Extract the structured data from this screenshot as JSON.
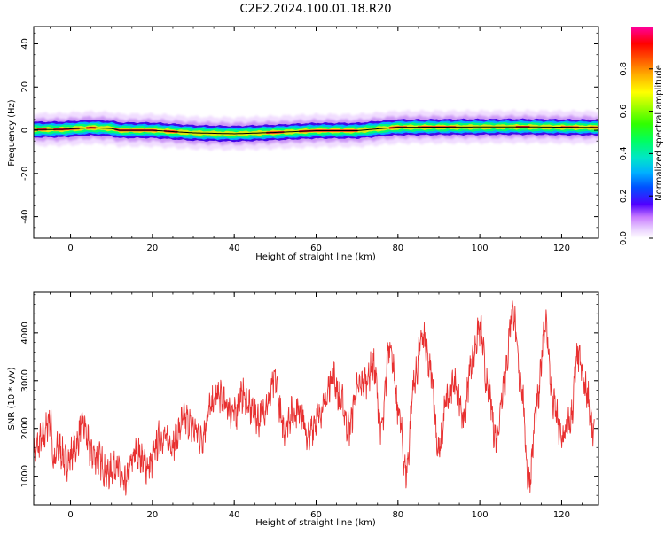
{
  "chart_data": [
    {
      "type": "heatmap",
      "title": "C2E2.2024.100.01.18.R20",
      "xlabel": "Height of straight line (km)",
      "ylabel": "Frequency (Hz)",
      "xlim": [
        -9,
        129
      ],
      "ylim": [
        -50,
        48
      ],
      "x_ticks": [
        0,
        20,
        40,
        60,
        80,
        100,
        120
      ],
      "y_ticks": [
        40,
        20,
        0,
        -20,
        -40
      ],
      "x_tick_labels": [
        "0",
        "20",
        "40",
        "60",
        "80",
        "100",
        "120"
      ],
      "y_tick_labels": [
        "40",
        "20",
        "0",
        "-20",
        "-40"
      ],
      "reference_line": [
        {
          "x": -9,
          "y": 0.3
        },
        {
          "x": -2,
          "y": 0.4
        },
        {
          "x": 5,
          "y": 1.2
        },
        {
          "x": 10,
          "y": 0.8
        },
        {
          "x": 12,
          "y": 0.0
        },
        {
          "x": 20,
          "y": 0.0
        },
        {
          "x": 30,
          "y": -1.2
        },
        {
          "x": 40,
          "y": -1.6
        },
        {
          "x": 50,
          "y": -1.0
        },
        {
          "x": 60,
          "y": -0.2
        },
        {
          "x": 70,
          "y": -0.2
        },
        {
          "x": 76,
          "y": 0.8
        },
        {
          "x": 80,
          "y": 1.4
        },
        {
          "x": 95,
          "y": 1.5
        },
        {
          "x": 110,
          "y": 1.6
        },
        {
          "x": 129,
          "y": 1.3
        }
      ],
      "colorbar": {
        "label": "Normalized spectral amplitude",
        "range": [
          0.0,
          1.0
        ],
        "ticks": [
          0.0,
          0.2,
          0.4,
          0.6,
          0.8
        ],
        "tick_labels": [
          "0.0",
          "0.2",
          "0.4",
          "0.6",
          "0.8"
        ],
        "colormap": "gist_ncar_r"
      }
    },
    {
      "type": "line",
      "xlabel": "Height of straight line (km)",
      "ylabel": "SNR (10 * v/v)",
      "xlim": [
        -9,
        129
      ],
      "ylim": [
        400,
        4850
      ],
      "x_ticks": [
        0,
        20,
        40,
        60,
        80,
        100,
        120
      ],
      "y_ticks": [
        1000,
        2000,
        3000,
        4000
      ],
      "x_tick_labels": [
        "0",
        "20",
        "40",
        "60",
        "80",
        "100",
        "120"
      ],
      "y_tick_labels": [
        "1000",
        "2000",
        "3000",
        "4000"
      ],
      "series": [
        {
          "name": "SNR",
          "color": "#e83030",
          "x": [
            -9,
            -7,
            -5,
            -4,
            -3,
            -1,
            1,
            3,
            5,
            7,
            9,
            11,
            13,
            16,
            19,
            22,
            25,
            28,
            30,
            32,
            34,
            36,
            38,
            40,
            42,
            44,
            46,
            48,
            50,
            52,
            54,
            56,
            58,
            60,
            62,
            64,
            66,
            68,
            70,
            72,
            74,
            76,
            78,
            80,
            82,
            84,
            86,
            88,
            90,
            92,
            94,
            96,
            98,
            100,
            102,
            104,
            106,
            108,
            110,
            112,
            114,
            116,
            118,
            120,
            122,
            124,
            126,
            128
          ],
          "values": [
            1500,
            1750,
            2200,
            1250,
            1600,
            1300,
            1550,
            2100,
            1500,
            1350,
            1050,
            1250,
            800,
            1500,
            1200,
            1800,
            1700,
            2200,
            2000,
            1800,
            2400,
            2700,
            2500,
            2300,
            2700,
            2400,
            2200,
            2500,
            3000,
            2000,
            2300,
            2400,
            1800,
            2200,
            2500,
            3100,
            2600,
            2000,
            2800,
            3000,
            3300,
            2000,
            3800,
            2400,
            1100,
            3000,
            3900,
            3200,
            1500,
            2600,
            3000,
            2200,
            3400,
            4100,
            2800,
            1800,
            3000,
            4500,
            3000,
            900,
            2500,
            4200,
            2500,
            1800,
            2100,
            3500,
            2800,
            1800
          ]
        }
      ]
    }
  ]
}
